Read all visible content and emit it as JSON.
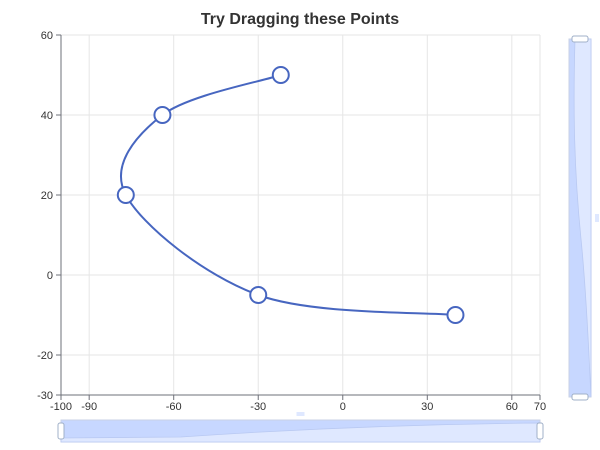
{
  "colors": {
    "series": "#4766c0",
    "zoom_fill": "#dfe8ff",
    "zoom_fill_selected": "#c7d7ff",
    "zoom_border": "#c8d2e6",
    "zoom_shadow": "#b9c9f2"
  },
  "chart_data": {
    "type": "line",
    "title": "Try Dragging these Points",
    "smooth": true,
    "series": [
      {
        "x": [
          -22,
          -64,
          -77,
          -30,
          40
        ],
        "y": [
          50,
          40,
          20,
          -5,
          -10
        ]
      }
    ],
    "xlim": [
      -100,
      70
    ],
    "ylim": [
      -30,
      60
    ],
    "x_ticks": [
      -100,
      -90,
      -60,
      -30,
      0,
      30,
      60,
      70
    ],
    "y_ticks": [
      -30,
      -20,
      0,
      20,
      40,
      60
    ],
    "grid": true,
    "datazoom": {
      "x_slider": {
        "start": -100,
        "end": 70
      },
      "y_slider": {
        "start": -30,
        "end": 60
      }
    }
  }
}
